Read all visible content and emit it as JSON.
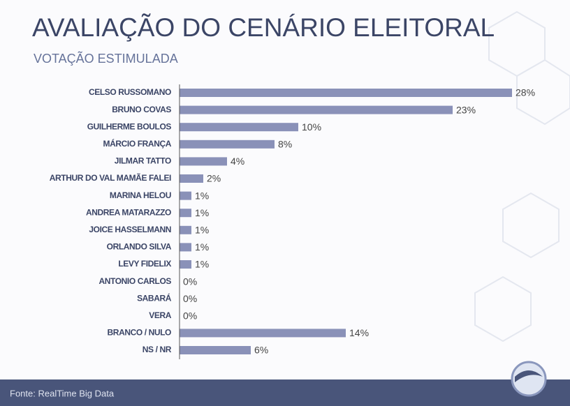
{
  "chart_data": {
    "type": "hbar",
    "title": "AVALIAÇÃO DO CENÁRIO ELEITORAL",
    "subtitle": "VOTAÇÃO ESTIMULADA",
    "categories": [
      "CELSO RUSSOMANO",
      "BRUNO COVAS",
      "GUILHERME BOULOS",
      "MÁRCIO FRANÇA",
      "JILMAR TATTO",
      "ARTHUR DO VAL MAMÃE FALEI",
      "MARINA HELOU",
      "ANDREA MATARAZZO",
      "JOICE HASSELMANN",
      "ORLANDO SILVA",
      "LEVY FIDELIX",
      "ANTONIO CARLOS",
      "SABARÁ",
      "VERA",
      "BRANCO / NULO",
      "NS / NR"
    ],
    "values": [
      28,
      23,
      10,
      8,
      4,
      2,
      1,
      1,
      1,
      1,
      1,
      0,
      0,
      0,
      14,
      6
    ],
    "value_labels": [
      "28%",
      "23%",
      "10%",
      "8%",
      "4%",
      "2%",
      "1%",
      "1%",
      "1%",
      "1%",
      "1%",
      "0%",
      "0%",
      "0%",
      "14%",
      "6%"
    ],
    "color": "#8a91b8",
    "source": "Fonte: RealTime Big Data"
  }
}
